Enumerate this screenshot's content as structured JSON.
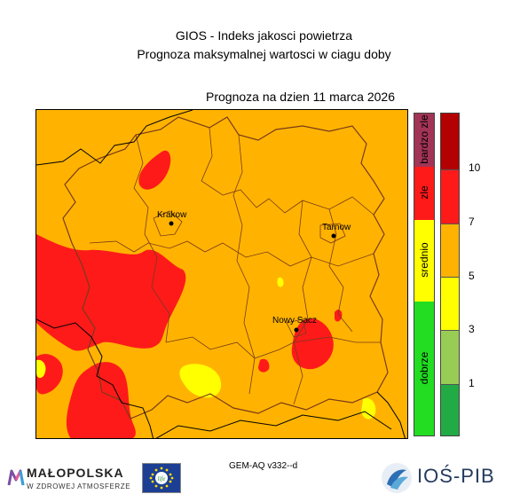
{
  "header": {
    "title": "GIOS - Indeks jakosci powietrza",
    "subtitle": "Prognoza maksymalnej wartosci w ciagu doby",
    "date_label": "Prognoza na dzien  11 marca 2026"
  },
  "map": {
    "colors": {
      "background": "#ffb300",
      "high": "#ff1a1a",
      "low": "#ffff00",
      "border": "#7a3a1a"
    },
    "cities": [
      {
        "name": "Krakow"
      },
      {
        "name": "Tarnow"
      },
      {
        "name": "Nowy Sacz"
      }
    ]
  },
  "legend": {
    "categories": [
      {
        "label": "bardzo zle",
        "color": "#a23457"
      },
      {
        "label": "zle",
        "color": "#ff1a1a"
      },
      {
        "label": "srednio",
        "color": "#ffff00"
      },
      {
        "label": "dobrze",
        "color": "#22dd22"
      }
    ],
    "scale_colors": [
      "#b30000",
      "#ff1a1a",
      "#ffb300",
      "#ffff00",
      "#99cc55",
      "#22aa44"
    ],
    "ticks": [
      "10",
      "7",
      "5",
      "3",
      "1"
    ]
  },
  "footer": {
    "model": "GEM-AQ v332--d",
    "malopolska_word": "MAŁOPOLSKA",
    "malopolska_sub": "W ZDROWEJ ATMOSFERZE",
    "eu_text": "life",
    "ios_text": "IOŚ-PIB"
  }
}
